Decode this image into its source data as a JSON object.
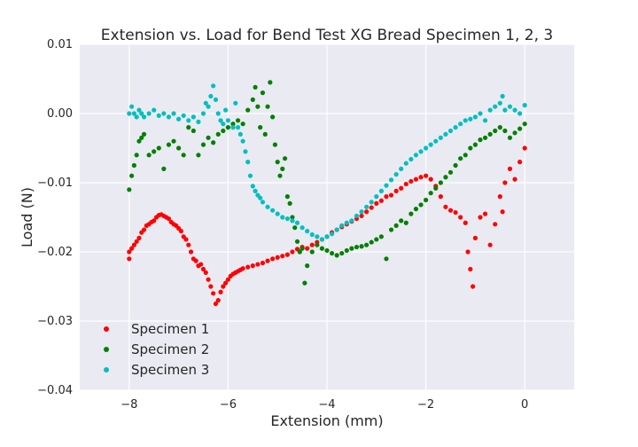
{
  "chart_data": {
    "type": "scatter",
    "title": "Extension vs. Load for Bend Test XG Bread Specimen 1, 2, 3",
    "xlabel": "Extension (mm)",
    "ylabel": "Load (N)",
    "xlim": [
      -9,
      1
    ],
    "ylim": [
      -0.04,
      0.01
    ],
    "xticks": [
      -8,
      -6,
      -4,
      -2,
      0
    ],
    "xtick_labels": [
      "−8",
      "−6",
      "−4",
      "−2",
      "0"
    ],
    "yticks": [
      -0.04,
      -0.03,
      -0.02,
      -0.01,
      0.0,
      0.01
    ],
    "ytick_labels": [
      "−0.04",
      "−0.03",
      "−0.02",
      "−0.01",
      "0.00",
      "0.01"
    ],
    "grid": true,
    "legend_position": "lower-left",
    "series": [
      {
        "name": "Specimen 1",
        "color": "#ff0000",
        "points": [
          [
            -8.0,
            -0.021
          ],
          [
            -8.0,
            -0.02
          ],
          [
            -7.95,
            -0.0195
          ],
          [
            -7.9,
            -0.019
          ],
          [
            -7.85,
            -0.0185
          ],
          [
            -7.8,
            -0.018
          ],
          [
            -7.75,
            -0.0172
          ],
          [
            -7.7,
            -0.0168
          ],
          [
            -7.65,
            -0.0162
          ],
          [
            -7.6,
            -0.016
          ],
          [
            -7.55,
            -0.0157
          ],
          [
            -7.5,
            -0.0155
          ],
          [
            -7.45,
            -0.015
          ],
          [
            -7.4,
            -0.0147
          ],
          [
            -7.35,
            -0.0146
          ],
          [
            -7.3,
            -0.0148
          ],
          [
            -7.25,
            -0.015
          ],
          [
            -7.2,
            -0.0152
          ],
          [
            -7.15,
            -0.0157
          ],
          [
            -7.1,
            -0.016
          ],
          [
            -7.05,
            -0.0162
          ],
          [
            -7.0,
            -0.0166
          ],
          [
            -6.95,
            -0.017
          ],
          [
            -6.9,
            -0.0178
          ],
          [
            -6.85,
            -0.0182
          ],
          [
            -6.8,
            -0.019
          ],
          [
            -6.75,
            -0.02
          ],
          [
            -6.7,
            -0.021
          ],
          [
            -6.65,
            -0.0213
          ],
          [
            -6.6,
            -0.022
          ],
          [
            -6.55,
            -0.0218
          ],
          [
            -6.5,
            -0.0225
          ],
          [
            -6.45,
            -0.023
          ],
          [
            -6.4,
            -0.024
          ],
          [
            -6.35,
            -0.025
          ],
          [
            -6.3,
            -0.026
          ],
          [
            -6.25,
            -0.0275
          ],
          [
            -6.2,
            -0.027
          ],
          [
            -6.15,
            -0.0258
          ],
          [
            -6.1,
            -0.025
          ],
          [
            -6.05,
            -0.0245
          ],
          [
            -6.0,
            -0.024
          ],
          [
            -5.95,
            -0.0235
          ],
          [
            -5.9,
            -0.0232
          ],
          [
            -5.85,
            -0.023
          ],
          [
            -5.8,
            -0.0228
          ],
          [
            -5.75,
            -0.0226
          ],
          [
            -5.7,
            -0.0224
          ],
          [
            -5.6,
            -0.0222
          ],
          [
            -5.5,
            -0.022
          ],
          [
            -5.4,
            -0.0218
          ],
          [
            -5.3,
            -0.0216
          ],
          [
            -5.2,
            -0.0213
          ],
          [
            -5.1,
            -0.021
          ],
          [
            -5.0,
            -0.0208
          ],
          [
            -4.9,
            -0.0206
          ],
          [
            -4.8,
            -0.0204
          ],
          [
            -4.7,
            -0.02
          ],
          [
            -4.6,
            -0.0196
          ],
          [
            -4.5,
            -0.0193
          ],
          [
            -4.4,
            -0.0195
          ],
          [
            -4.3,
            -0.019
          ],
          [
            -4.2,
            -0.0186
          ],
          [
            -4.1,
            -0.0182
          ],
          [
            -4.0,
            -0.0178
          ],
          [
            -3.9,
            -0.0172
          ],
          [
            -3.8,
            -0.0168
          ],
          [
            -3.7,
            -0.0164
          ],
          [
            -3.6,
            -0.016
          ],
          [
            -3.5,
            -0.0156
          ],
          [
            -3.4,
            -0.0152
          ],
          [
            -3.3,
            -0.0148
          ],
          [
            -3.2,
            -0.0142
          ],
          [
            -3.1,
            -0.0136
          ],
          [
            -3.0,
            -0.013
          ],
          [
            -2.9,
            -0.0126
          ],
          [
            -2.8,
            -0.012
          ],
          [
            -2.7,
            -0.0118
          ],
          [
            -2.6,
            -0.0112
          ],
          [
            -2.5,
            -0.0108
          ],
          [
            -2.4,
            -0.0102
          ],
          [
            -2.3,
            -0.0098
          ],
          [
            -2.2,
            -0.0095
          ],
          [
            -2.1,
            -0.0092
          ],
          [
            -2.0,
            -0.009
          ],
          [
            -1.9,
            -0.0095
          ],
          [
            -1.8,
            -0.0105
          ],
          [
            -1.7,
            -0.012
          ],
          [
            -1.6,
            -0.0135
          ],
          [
            -1.5,
            -0.014
          ],
          [
            -1.4,
            -0.0143
          ],
          [
            -1.3,
            -0.015
          ],
          [
            -1.2,
            -0.0158
          ],
          [
            -1.15,
            -0.02
          ],
          [
            -1.1,
            -0.0225
          ],
          [
            -1.05,
            -0.025
          ],
          [
            -1.0,
            -0.018
          ],
          [
            -0.9,
            -0.015
          ],
          [
            -0.8,
            -0.0145
          ],
          [
            -0.7,
            -0.019
          ],
          [
            -0.6,
            -0.016
          ],
          [
            -0.5,
            -0.012
          ],
          [
            -0.45,
            -0.0142
          ],
          [
            -0.4,
            -0.01
          ],
          [
            -0.3,
            -0.008
          ],
          [
            -0.2,
            -0.0095
          ],
          [
            -0.1,
            -0.007
          ],
          [
            0.0,
            -0.005
          ]
        ]
      },
      {
        "name": "Specimen 2",
        "color": "#008000",
        "points": [
          [
            -8.0,
            -0.011
          ],
          [
            -7.95,
            -0.009
          ],
          [
            -7.9,
            -0.0075
          ],
          [
            -7.85,
            -0.006
          ],
          [
            -7.8,
            -0.004
          ],
          [
            -7.75,
            -0.0035
          ],
          [
            -7.7,
            -0.003
          ],
          [
            -7.6,
            -0.006
          ],
          [
            -7.5,
            -0.0055
          ],
          [
            -7.4,
            -0.005
          ],
          [
            -7.3,
            -0.008
          ],
          [
            -7.2,
            -0.0045
          ],
          [
            -7.1,
            -0.004
          ],
          [
            -7.0,
            -0.005
          ],
          [
            -6.9,
            -0.006
          ],
          [
            -6.8,
            -0.002
          ],
          [
            -6.7,
            -0.0025
          ],
          [
            -6.6,
            -0.006
          ],
          [
            -6.5,
            -0.0045
          ],
          [
            -6.4,
            -0.0035
          ],
          [
            -6.3,
            -0.0042
          ],
          [
            -6.2,
            -0.003
          ],
          [
            -6.1,
            -0.0025
          ],
          [
            -6.0,
            -0.002
          ],
          [
            -5.9,
            -0.0015
          ],
          [
            -5.8,
            -0.001
          ],
          [
            -5.7,
            -0.0015
          ],
          [
            -5.6,
            0.0005
          ],
          [
            -5.5,
            0.002
          ],
          [
            -5.45,
            0.0038
          ],
          [
            -5.4,
            0.001
          ],
          [
            -5.35,
            -0.002
          ],
          [
            -5.3,
            0.003
          ],
          [
            -5.25,
            -0.003
          ],
          [
            -5.2,
            0.001
          ],
          [
            -5.15,
            0.0045
          ],
          [
            -5.1,
            -0.0005
          ],
          [
            -5.05,
            -0.0045
          ],
          [
            -5.0,
            -0.007
          ],
          [
            -4.95,
            -0.009
          ],
          [
            -4.9,
            -0.008
          ],
          [
            -4.85,
            -0.0065
          ],
          [
            -4.8,
            -0.012
          ],
          [
            -4.75,
            -0.013
          ],
          [
            -4.7,
            -0.015
          ],
          [
            -4.65,
            -0.0165
          ],
          [
            -4.6,
            -0.0185
          ],
          [
            -4.55,
            -0.02
          ],
          [
            -4.5,
            -0.0195
          ],
          [
            -4.45,
            -0.0245
          ],
          [
            -4.4,
            -0.022
          ],
          [
            -4.3,
            -0.02
          ],
          [
            -4.2,
            -0.019
          ],
          [
            -4.1,
            -0.0195
          ],
          [
            -4.0,
            -0.0198
          ],
          [
            -3.9,
            -0.0202
          ],
          [
            -3.8,
            -0.0205
          ],
          [
            -3.7,
            -0.0202
          ],
          [
            -3.6,
            -0.0198
          ],
          [
            -3.5,
            -0.0195
          ],
          [
            -3.4,
            -0.0193
          ],
          [
            -3.3,
            -0.0192
          ],
          [
            -3.2,
            -0.019
          ],
          [
            -3.1,
            -0.0186
          ],
          [
            -3.0,
            -0.0182
          ],
          [
            -2.9,
            -0.0178
          ],
          [
            -2.8,
            -0.021
          ],
          [
            -2.7,
            -0.0168
          ],
          [
            -2.6,
            -0.0162
          ],
          [
            -2.5,
            -0.0155
          ],
          [
            -2.4,
            -0.0158
          ],
          [
            -2.3,
            -0.0145
          ],
          [
            -2.2,
            -0.0138
          ],
          [
            -2.1,
            -0.0132
          ],
          [
            -2.0,
            -0.0125
          ],
          [
            -1.9,
            -0.0115
          ],
          [
            -1.8,
            -0.0108
          ],
          [
            -1.7,
            -0.01
          ],
          [
            -1.6,
            -0.0092
          ],
          [
            -1.5,
            -0.0085
          ],
          [
            -1.4,
            -0.0075
          ],
          [
            -1.3,
            -0.0065
          ],
          [
            -1.2,
            -0.006
          ],
          [
            -1.1,
            -0.005
          ],
          [
            -1.0,
            -0.0045
          ],
          [
            -0.9,
            -0.0038
          ],
          [
            -0.8,
            -0.0035
          ],
          [
            -0.7,
            -0.003
          ],
          [
            -0.6,
            -0.0025
          ],
          [
            -0.5,
            -0.002
          ],
          [
            -0.4,
            -0.0025
          ],
          [
            -0.3,
            -0.0035
          ],
          [
            -0.2,
            -0.0028
          ],
          [
            -0.1,
            -0.0022
          ],
          [
            0.0,
            -0.0015
          ]
        ]
      },
      {
        "name": "Specimen 3",
        "color": "#00bfbf",
        "points": [
          [
            -8.0,
            0.0
          ],
          [
            -7.95,
            0.001
          ],
          [
            -7.9,
            0.0
          ],
          [
            -7.85,
            -0.0005
          ],
          [
            -7.8,
            0.0005
          ],
          [
            -7.75,
            0.0
          ],
          [
            -7.7,
            -0.0005
          ],
          [
            -7.6,
            0.0
          ],
          [
            -7.5,
            0.0005
          ],
          [
            -7.4,
            -0.0003
          ],
          [
            -7.3,
            0.0
          ],
          [
            -7.2,
            -0.0005
          ],
          [
            -7.1,
            0.0
          ],
          [
            -7.0,
            -0.0008
          ],
          [
            -6.9,
            -0.0003
          ],
          [
            -6.8,
            -0.001
          ],
          [
            -6.7,
            -0.0005
          ],
          [
            -6.6,
            -0.0012
          ],
          [
            -6.5,
            0.0
          ],
          [
            -6.45,
            0.0015
          ],
          [
            -6.4,
            0.001
          ],
          [
            -6.35,
            0.0025
          ],
          [
            -6.3,
            0.004
          ],
          [
            -6.25,
            0.002
          ],
          [
            -6.2,
            0.0
          ],
          [
            -6.15,
            -0.001
          ],
          [
            -6.1,
            -0.0015
          ],
          [
            -6.05,
            0.0005
          ],
          [
            -6.0,
            -0.001
          ],
          [
            -5.9,
            -0.002
          ],
          [
            -5.85,
            0.0015
          ],
          [
            -5.8,
            -0.002
          ],
          [
            -5.75,
            -0.003
          ],
          [
            -5.7,
            -0.004
          ],
          [
            -5.65,
            -0.0055
          ],
          [
            -5.6,
            -0.007
          ],
          [
            -5.55,
            -0.009
          ],
          [
            -5.5,
            -0.0105
          ],
          [
            -5.45,
            -0.0112
          ],
          [
            -5.4,
            -0.0118
          ],
          [
            -5.35,
            -0.0122
          ],
          [
            -5.3,
            -0.0128
          ],
          [
            -5.2,
            -0.0135
          ],
          [
            -5.1,
            -0.014
          ],
          [
            -5.0,
            -0.0145
          ],
          [
            -4.9,
            -0.015
          ],
          [
            -4.8,
            -0.0152
          ],
          [
            -4.7,
            -0.0155
          ],
          [
            -4.6,
            -0.0158
          ],
          [
            -4.5,
            -0.0165
          ],
          [
            -4.4,
            -0.017
          ],
          [
            -4.3,
            -0.0175
          ],
          [
            -4.2,
            -0.0178
          ],
          [
            -4.1,
            -0.0182
          ],
          [
            -4.0,
            -0.0178
          ],
          [
            -3.9,
            -0.0174
          ],
          [
            -3.8,
            -0.0168
          ],
          [
            -3.7,
            -0.0162
          ],
          [
            -3.6,
            -0.0158
          ],
          [
            -3.5,
            -0.0155
          ],
          [
            -3.4,
            -0.0148
          ],
          [
            -3.3,
            -0.0142
          ],
          [
            -3.2,
            -0.0135
          ],
          [
            -3.1,
            -0.0128
          ],
          [
            -3.0,
            -0.012
          ],
          [
            -2.9,
            -0.0112
          ],
          [
            -2.8,
            -0.0104
          ],
          [
            -2.7,
            -0.0096
          ],
          [
            -2.6,
            -0.0088
          ],
          [
            -2.5,
            -0.008
          ],
          [
            -2.4,
            -0.0072
          ],
          [
            -2.3,
            -0.0066
          ],
          [
            -2.2,
            -0.006
          ],
          [
            -2.1,
            -0.0055
          ],
          [
            -2.0,
            -0.005
          ],
          [
            -1.9,
            -0.0045
          ],
          [
            -1.8,
            -0.004
          ],
          [
            -1.7,
            -0.0035
          ],
          [
            -1.6,
            -0.003
          ],
          [
            -1.5,
            -0.0025
          ],
          [
            -1.4,
            -0.002
          ],
          [
            -1.3,
            -0.0015
          ],
          [
            -1.2,
            -0.001
          ],
          [
            -1.1,
            -0.0008
          ],
          [
            -1.0,
            -0.0005
          ],
          [
            -0.9,
            0.0
          ],
          [
            -0.8,
            -0.001
          ],
          [
            -0.7,
            0.0005
          ],
          [
            -0.6,
            0.001
          ],
          [
            -0.5,
            0.0015
          ],
          [
            -0.45,
            0.0025
          ],
          [
            -0.4,
            0.0005
          ],
          [
            -0.3,
            0.001
          ],
          [
            -0.2,
            0.0005
          ],
          [
            -0.1,
            0.0
          ],
          [
            0.0,
            0.0012
          ]
        ]
      }
    ]
  }
}
